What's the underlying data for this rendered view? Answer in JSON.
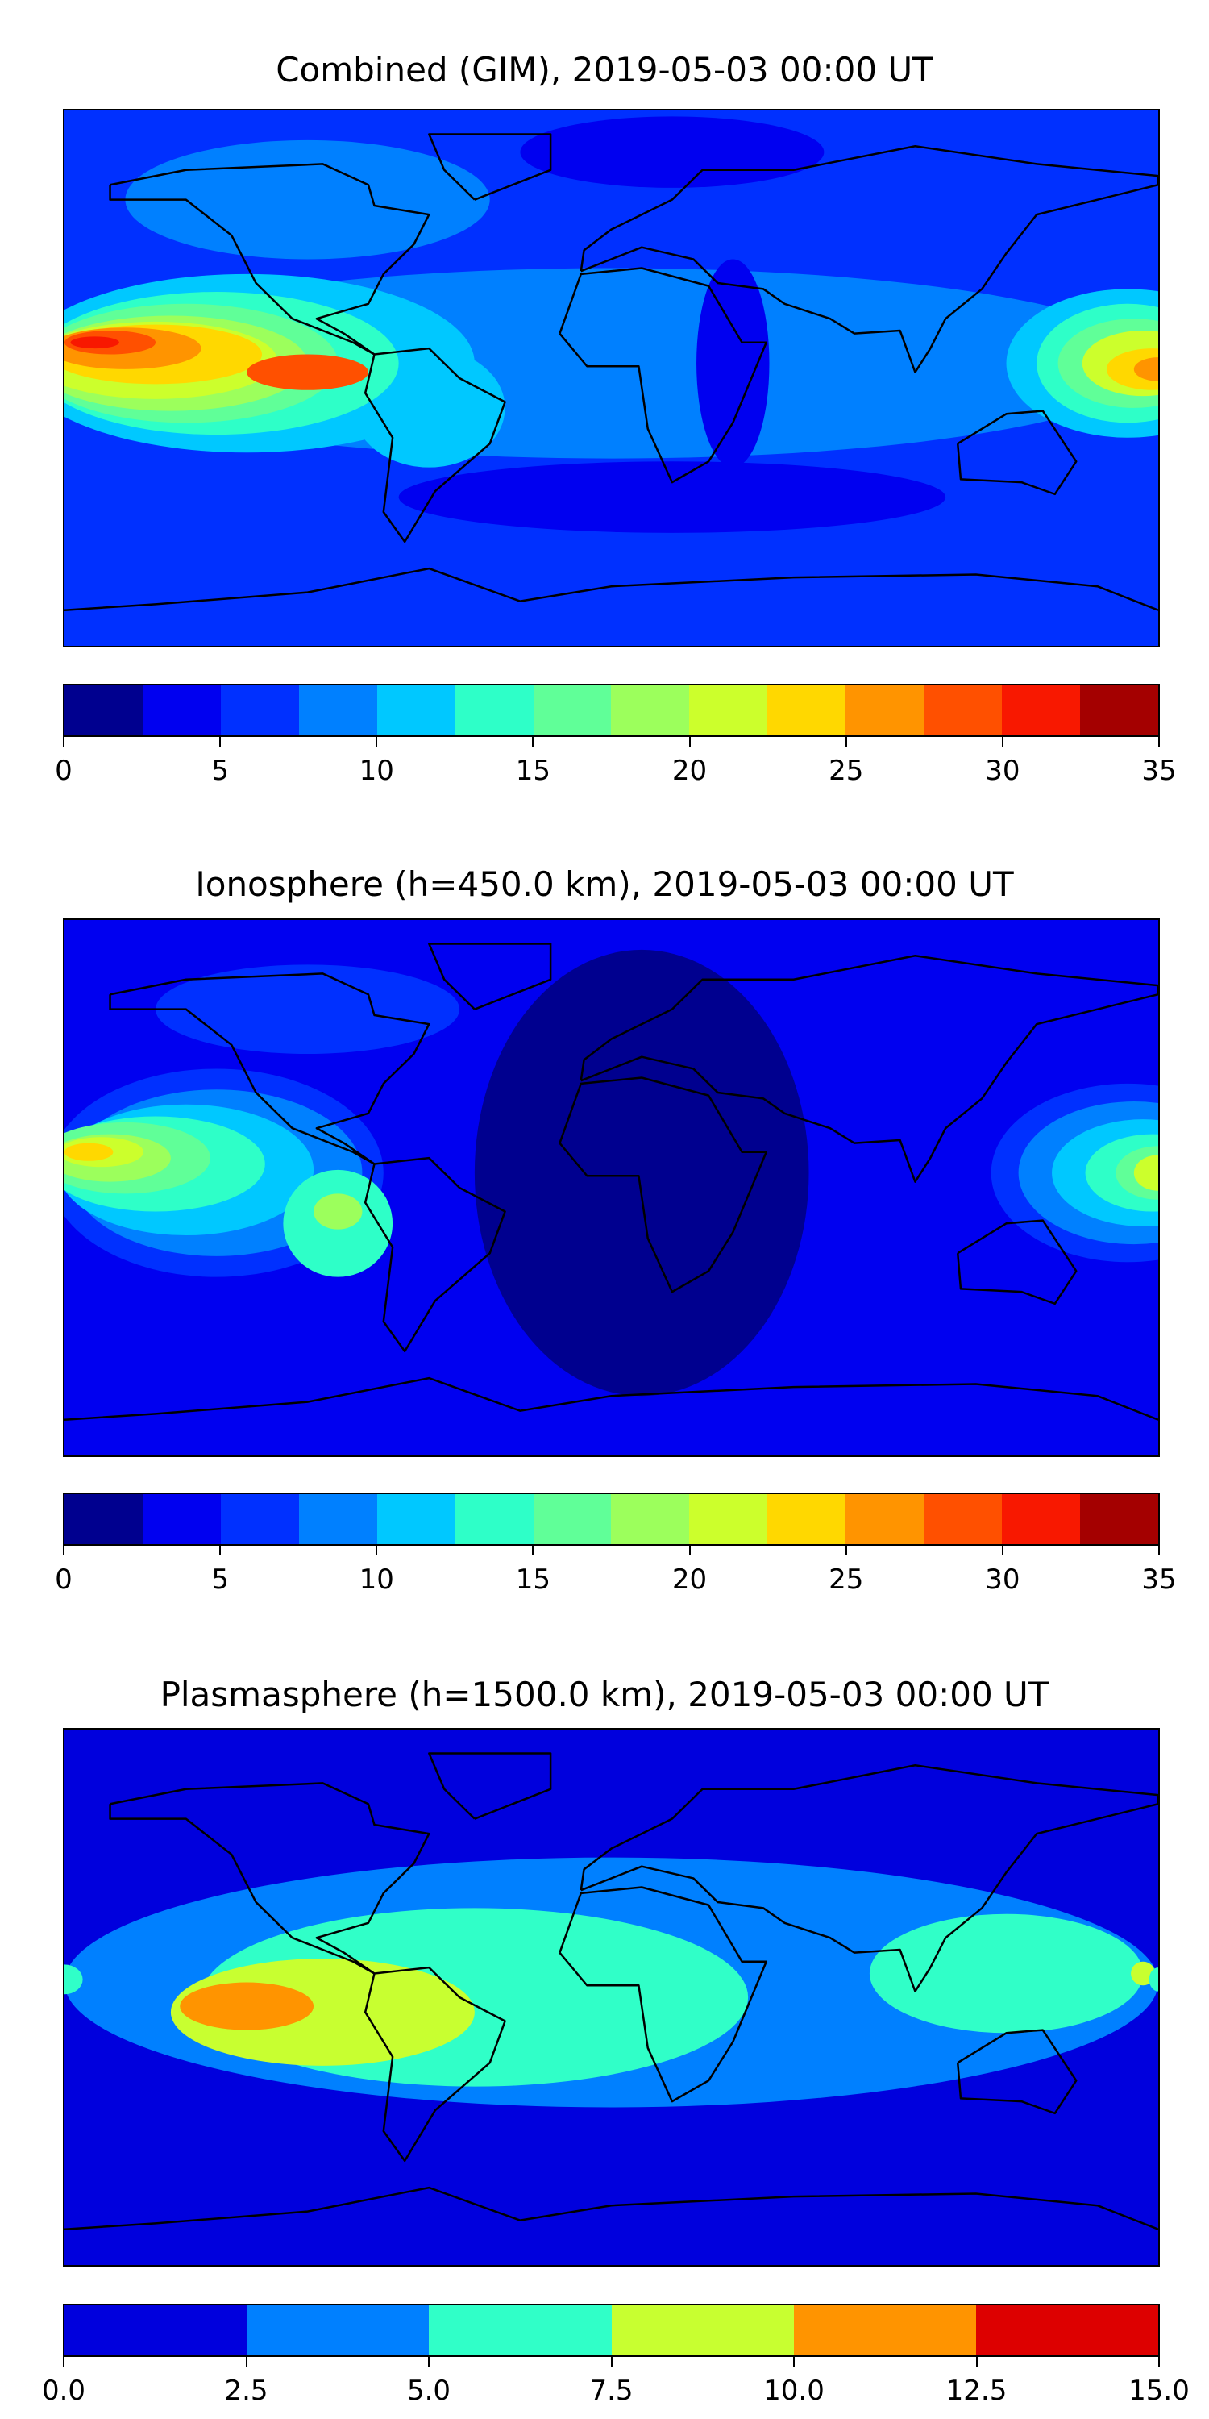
{
  "chart_data": [
    {
      "type": "heatmap",
      "subtype": "filled-contour-map",
      "title": "Combined (GIM), 2019-05-03 00:00 UT",
      "xlim": [
        -180,
        180
      ],
      "ylim": [
        -90,
        90
      ],
      "colorbar": {
        "levels": [
          0,
          2.5,
          5,
          7.5,
          10,
          12.5,
          15,
          17.5,
          20,
          22.5,
          25,
          27.5,
          30,
          32.5,
          35
        ],
        "colors": [
          "#00008f",
          "#0000f0",
          "#0030ff",
          "#0080ff",
          "#00c8ff",
          "#2effc8",
          "#60ff98",
          "#9cff5c",
          "#ccff2c",
          "#ffd800",
          "#ff9400",
          "#ff5000",
          "#f81800",
          "#a40000"
        ],
        "tick_labels": [
          "0",
          "5",
          "10",
          "15",
          "20",
          "25",
          "30",
          "35"
        ],
        "tick_values": [
          0,
          5,
          10,
          15,
          20,
          25,
          30,
          35
        ]
      },
      "background_level": 2,
      "regions": [
        [
          -100,
          60,
          60,
          20,
          3
        ],
        [
          20,
          76,
          50,
          12,
          1
        ],
        [
          0,
          5,
          180,
          32,
          3
        ],
        [
          -120,
          5,
          75,
          30,
          4
        ],
        [
          -60,
          -10,
          25,
          20,
          4
        ],
        [
          -130,
          5,
          60,
          24,
          5
        ],
        [
          -140,
          5,
          50,
          20,
          6
        ],
        [
          -145,
          5,
          45,
          16,
          7
        ],
        [
          -150,
          6,
          40,
          13,
          8
        ],
        [
          -150,
          8,
          35,
          10,
          9
        ],
        [
          -160,
          10,
          25,
          7,
          10
        ],
        [
          -100,
          2,
          20,
          6,
          11
        ],
        [
          -165,
          12,
          15,
          4,
          11
        ],
        [
          -170,
          12,
          8,
          2,
          12
        ],
        [
          170,
          5,
          40,
          25,
          4
        ],
        [
          170,
          5,
          30,
          20,
          5
        ],
        [
          172,
          5,
          25,
          15,
          6
        ],
        [
          175,
          5,
          20,
          11,
          8
        ],
        [
          178,
          3,
          15,
          7,
          9
        ],
        [
          180,
          3,
          8,
          4,
          10
        ],
        [
          20,
          -40,
          90,
          12,
          1
        ],
        [
          40,
          5,
          12,
          35,
          1
        ]
      ]
    },
    {
      "type": "heatmap",
      "subtype": "filled-contour-map",
      "title": "Ionosphere  (h=450.0 km), 2019-05-03 00:00 UT",
      "xlim": [
        -180,
        180
      ],
      "ylim": [
        -90,
        90
      ],
      "colorbar": {
        "levels": [
          0,
          2.5,
          5,
          7.5,
          10,
          12.5,
          15,
          17.5,
          20,
          22.5,
          25,
          27.5,
          30,
          32.5,
          35
        ],
        "colors": [
          "#00008f",
          "#0000f0",
          "#0030ff",
          "#0080ff",
          "#00c8ff",
          "#2effc8",
          "#60ff98",
          "#9cff5c",
          "#ccff2c",
          "#ffd800",
          "#ff9400",
          "#ff5000",
          "#f81800",
          "#a40000"
        ],
        "tick_labels": [
          "0",
          "5",
          "10",
          "15",
          "20",
          "25",
          "30",
          "35"
        ],
        "tick_values": [
          0,
          5,
          10,
          15,
          20,
          25,
          30,
          35
        ]
      },
      "background_level": 1,
      "regions": [
        [
          10,
          5,
          55,
          75,
          0
        ],
        [
          -100,
          60,
          50,
          15,
          2
        ],
        [
          -130,
          5,
          55,
          35,
          2
        ],
        [
          -130,
          5,
          48,
          28,
          3
        ],
        [
          -140,
          6,
          42,
          22,
          4
        ],
        [
          -150,
          8,
          36,
          16,
          5
        ],
        [
          -160,
          10,
          28,
          12,
          6
        ],
        [
          -165,
          10,
          20,
          8,
          7
        ],
        [
          -168,
          12,
          14,
          5,
          8
        ],
        [
          -172,
          12,
          8,
          3,
          9
        ],
        [
          -90,
          -12,
          18,
          18,
          5
        ],
        [
          -90,
          -8,
          8,
          6,
          7
        ],
        [
          170,
          5,
          45,
          30,
          2
        ],
        [
          172,
          5,
          38,
          24,
          3
        ],
        [
          175,
          5,
          30,
          18,
          4
        ],
        [
          178,
          5,
          22,
          13,
          5
        ],
        [
          180,
          5,
          14,
          9,
          6
        ],
        [
          180,
          5,
          8,
          6,
          8
        ]
      ]
    },
    {
      "type": "heatmap",
      "subtype": "filled-contour-map",
      "title": "Plasmasphere (h=1500.0 km), 2019-05-03 00:00 UT",
      "xlim": [
        -180,
        180
      ],
      "ylim": [
        -90,
        90
      ],
      "colorbar": {
        "levels": [
          0,
          2.5,
          5,
          7.5,
          10,
          12.5,
          15
        ],
        "colors": [
          "#0000dd",
          "#0080ff",
          "#30ffc8",
          "#c8ff30",
          "#ff9400",
          "#dd0000"
        ],
        "tick_labels": [
          "0.0",
          "2.5",
          "5.0",
          "7.5",
          "10.0",
          "12.5",
          "15.0"
        ],
        "tick_values": [
          0,
          2.5,
          5,
          7.5,
          10,
          12.5,
          15
        ]
      },
      "background_level": 0,
      "regions": [
        [
          0,
          5,
          180,
          42,
          1
        ],
        [
          -45,
          0,
          90,
          30,
          2
        ],
        [
          130,
          8,
          45,
          20,
          2
        ],
        [
          -95,
          -5,
          50,
          18,
          3
        ],
        [
          -120,
          -3,
          22,
          8,
          4
        ],
        [
          -180,
          6,
          6,
          5,
          2
        ],
        [
          175,
          8,
          4,
          4,
          3
        ],
        [
          180,
          6,
          3,
          4,
          2
        ]
      ]
    }
  ]
}
